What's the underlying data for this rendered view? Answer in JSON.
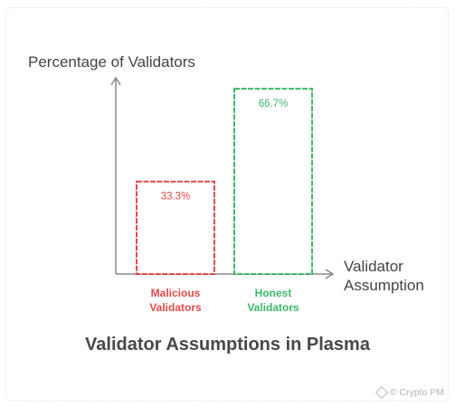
{
  "chart_data": {
    "type": "bar",
    "title": "Validator Assumptions in Plasma",
    "ylabel": "Percentage of Validators",
    "xlabel": "Validator Assumption",
    "ylim": [
      0,
      70
    ],
    "categories": [
      "Malicious Validators",
      "Honest Validators"
    ],
    "values": [
      33.3,
      66.7
    ],
    "value_labels": [
      "33.3%",
      "66.7%"
    ],
    "bar_colors": [
      "#e24a4a",
      "#3cb86a"
    ],
    "bar_style": "outlined, dashed border",
    "grid": false
  },
  "watermark": {
    "text": "© Crypto PM",
    "icon": "crypto-pm-logo-icon"
  }
}
